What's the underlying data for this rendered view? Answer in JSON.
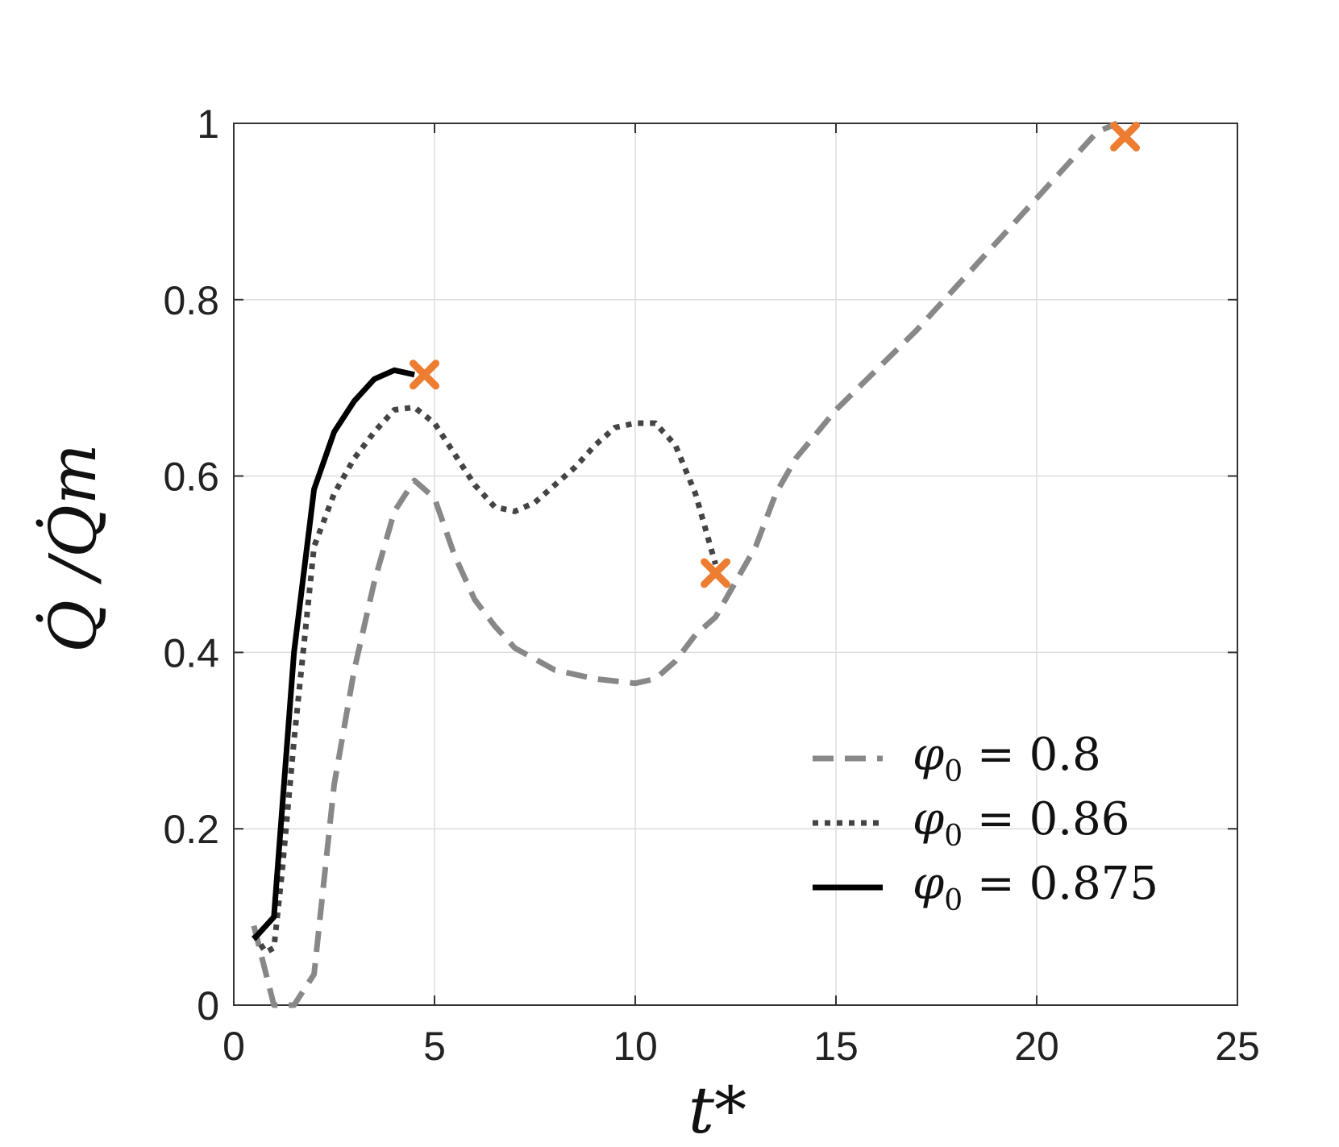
{
  "chart_data": {
    "type": "line",
    "title": "",
    "xlabel": "t*",
    "ylabel": "Q̇ /Q̇m",
    "xlim": [
      0,
      25
    ],
    "ylim": [
      0,
      1
    ],
    "x_ticks": [
      "0",
      "5",
      "10",
      "15",
      "20",
      "25"
    ],
    "y_ticks": [
      "0",
      "0.2",
      "0.4",
      "0.6",
      "0.8",
      "1"
    ],
    "grid": true,
    "legend_position": "bottom-right",
    "series": [
      {
        "name": "φ0 = 0.8",
        "legend_symbol": "φ",
        "legend_subscript": "0",
        "legend_rest": " = 0.8",
        "style": "dashed",
        "color": "#888888",
        "x": [
          0.5,
          1.0,
          1.5,
          2.0,
          2.5,
          3.0,
          3.5,
          4.0,
          4.5,
          5.0,
          5.5,
          6.0,
          6.5,
          7.0,
          8.0,
          9.0,
          10.0,
          10.5,
          11.0,
          11.5,
          12.0,
          12.5,
          13.0,
          13.5,
          14.0,
          15.0,
          16.0,
          17.0,
          18.0,
          19.0,
          20.0,
          21.0,
          21.5,
          22.0
        ],
        "y": [
          0.09,
          0.0,
          0.0,
          0.035,
          0.25,
          0.38,
          0.48,
          0.56,
          0.595,
          0.575,
          0.51,
          0.46,
          0.43,
          0.405,
          0.38,
          0.37,
          0.365,
          0.37,
          0.39,
          0.42,
          0.44,
          0.48,
          0.52,
          0.58,
          0.62,
          0.675,
          0.72,
          0.765,
          0.815,
          0.865,
          0.915,
          0.965,
          0.99,
          1.0
        ]
      },
      {
        "name": "φ0 = 0.86",
        "legend_symbol": "φ",
        "legend_subscript": "0",
        "legend_rest": " = 0.86",
        "style": "dotted",
        "color": "#444444",
        "x": [
          0.5,
          0.8,
          1.0,
          1.2,
          1.5,
          2.0,
          2.5,
          3.0,
          3.5,
          4.0,
          4.5,
          5.0,
          5.5,
          6.0,
          6.5,
          7.0,
          7.5,
          8.0,
          8.5,
          9.0,
          9.5,
          10.0,
          10.5,
          11.0,
          11.5,
          12.0
        ],
        "y": [
          0.08,
          0.06,
          0.065,
          0.15,
          0.3,
          0.52,
          0.58,
          0.62,
          0.65,
          0.675,
          0.678,
          0.66,
          0.625,
          0.59,
          0.565,
          0.56,
          0.57,
          0.59,
          0.61,
          0.635,
          0.655,
          0.66,
          0.66,
          0.635,
          0.58,
          0.5
        ]
      },
      {
        "name": "φ0 = 0.875",
        "legend_symbol": "φ",
        "legend_subscript": "0",
        "legend_rest": " = 0.875",
        "style": "solid",
        "color": "#000000",
        "x": [
          0.5,
          1.0,
          1.5,
          2.0,
          2.5,
          3.0,
          3.5,
          4.0,
          4.5
        ],
        "y": [
          0.075,
          0.1,
          0.4,
          0.585,
          0.65,
          0.685,
          0.71,
          0.72,
          0.715
        ]
      }
    ],
    "markers": [
      {
        "x": 4.75,
        "y": 0.715,
        "symbol": "x",
        "color": "#ED7D31"
      },
      {
        "x": 12.0,
        "y": 0.49,
        "symbol": "x",
        "color": "#ED7D31"
      },
      {
        "x": 22.2,
        "y": 0.985,
        "symbol": "x",
        "color": "#ED7D31"
      }
    ]
  }
}
